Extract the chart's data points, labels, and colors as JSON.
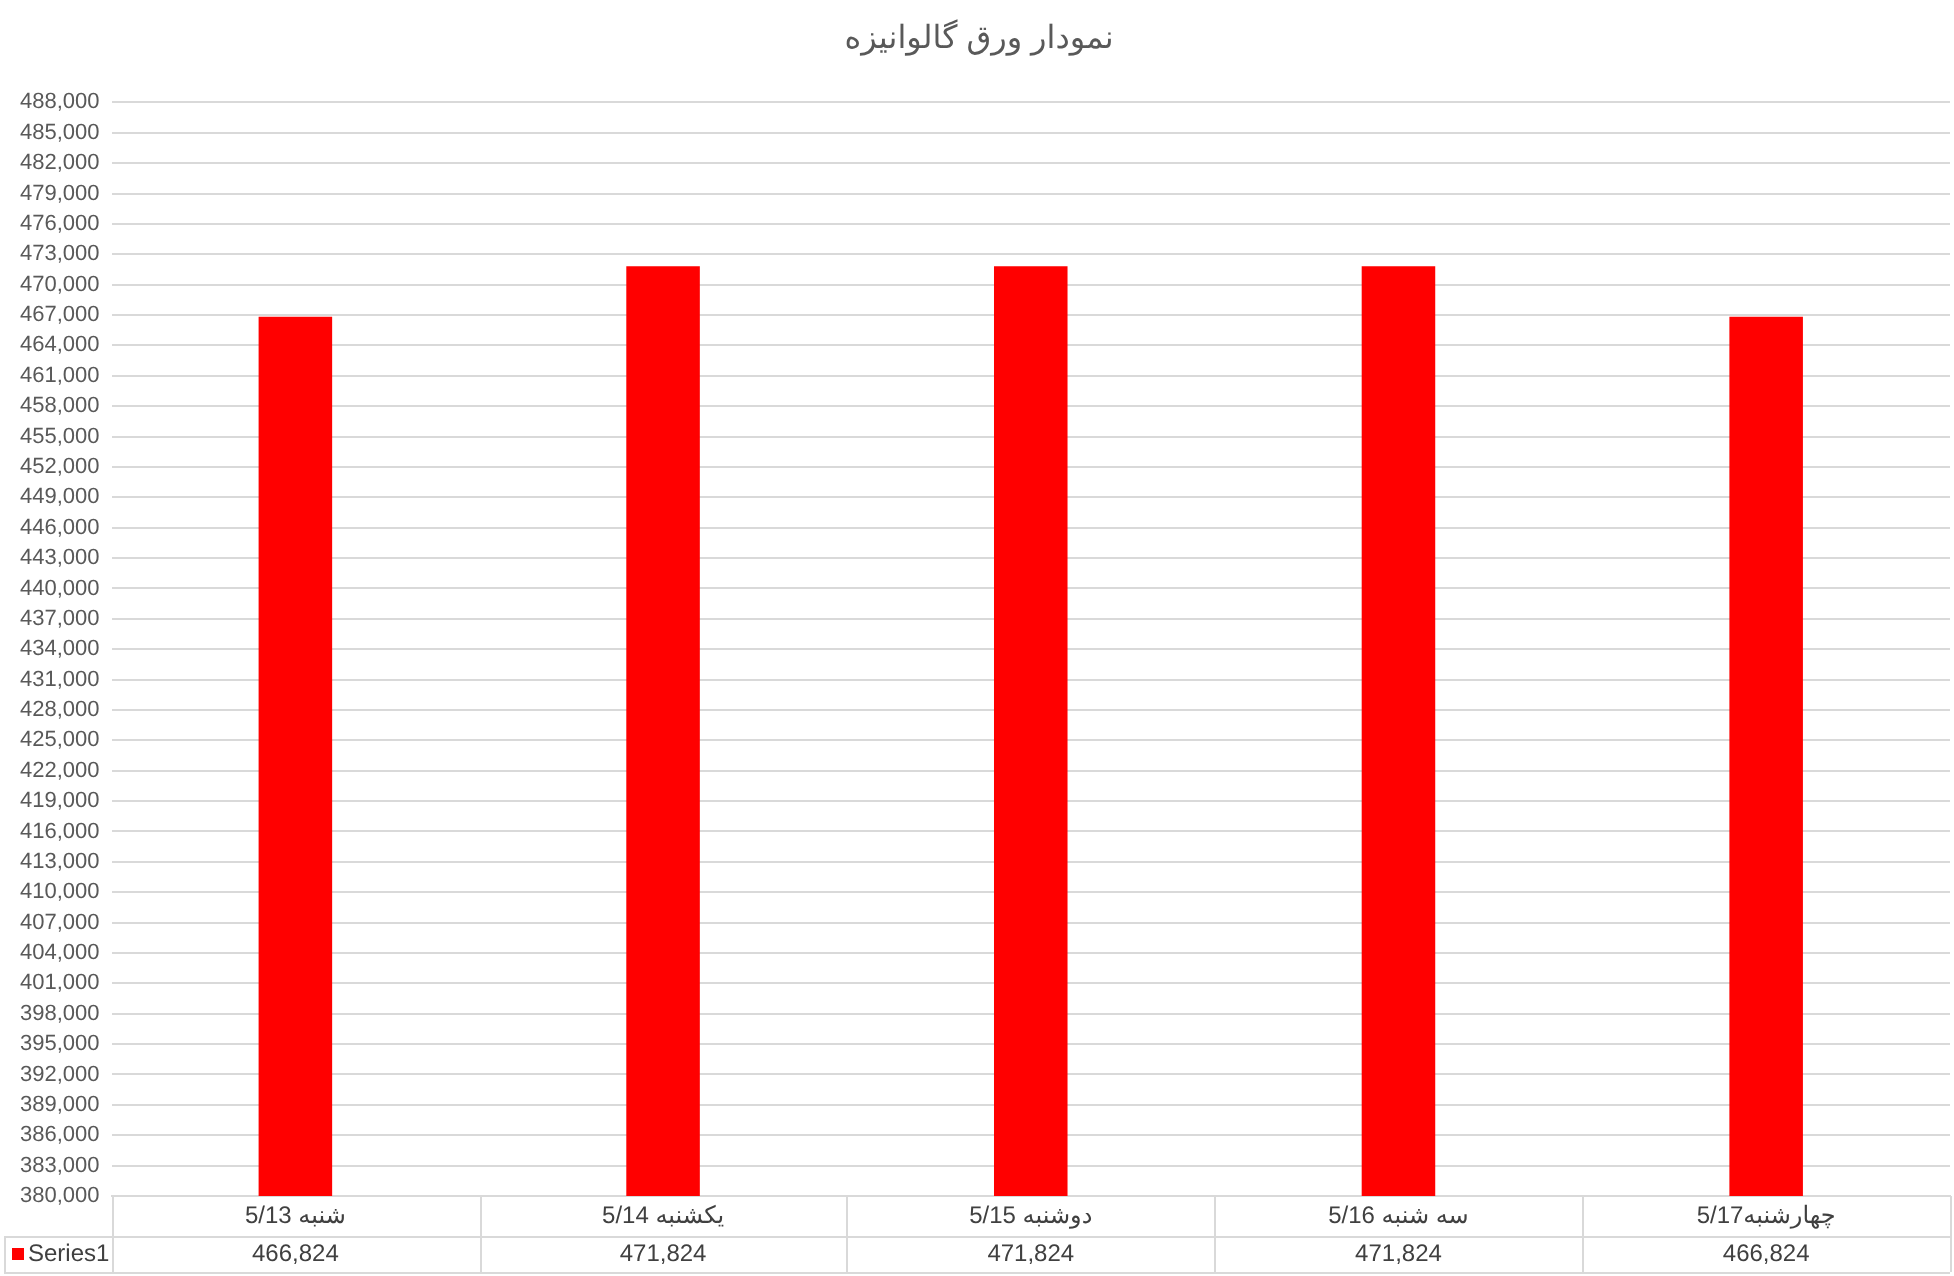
{
  "chart_data": {
    "type": "bar",
    "title": "نمودار ورق گالوانیزه",
    "categories": [
      "شنبه 5/13",
      "یکشنبه 5/14",
      "دوشنبه 5/15",
      "سه شنبه 5/16",
      "چهارشنبه5/17"
    ],
    "series": [
      {
        "name": "Series1",
        "color": "#ff0000",
        "values": [
          466824,
          471824,
          471824,
          471824,
          466824
        ],
        "value_labels": [
          "466,824",
          "471,824",
          "471,824",
          "471,824",
          "466,824"
        ]
      }
    ],
    "ylim": [
      380000,
      488000
    ],
    "yticks": [
      {
        "value": 380000,
        "label": "380,000"
      },
      {
        "value": 383000,
        "label": "383,000"
      },
      {
        "value": 386000,
        "label": "386,000"
      },
      {
        "value": 389000,
        "label": "389,000"
      },
      {
        "value": 392000,
        "label": "392,000"
      },
      {
        "value": 395000,
        "label": "395,000"
      },
      {
        "value": 398000,
        "label": "398,000"
      },
      {
        "value": 401000,
        "label": "401,000"
      },
      {
        "value": 404000,
        "label": "404,000"
      },
      {
        "value": 407000,
        "label": "407,000"
      },
      {
        "value": 410000,
        "label": "410,000"
      },
      {
        "value": 413000,
        "label": "413,000"
      },
      {
        "value": 416000,
        "label": "416,000"
      },
      {
        "value": 419000,
        "label": "419,000"
      },
      {
        "value": 422000,
        "label": "422,000"
      },
      {
        "value": 425000,
        "label": "425,000"
      },
      {
        "value": 428000,
        "label": "428,000"
      },
      {
        "value": 431000,
        "label": "431,000"
      },
      {
        "value": 434000,
        "label": "434,000"
      },
      {
        "value": 437000,
        "label": "437,000"
      },
      {
        "value": 440000,
        "label": "440,000"
      },
      {
        "value": 443000,
        "label": "443,000"
      },
      {
        "value": 446000,
        "label": "446,000"
      },
      {
        "value": 449000,
        "label": "449,000"
      },
      {
        "value": 452000,
        "label": "452,000"
      },
      {
        "value": 455000,
        "label": "455,000"
      },
      {
        "value": 458000,
        "label": "458,000"
      },
      {
        "value": 461000,
        "label": "461,000"
      },
      {
        "value": 464000,
        "label": "464,000"
      },
      {
        "value": 467000,
        "label": "467,000"
      },
      {
        "value": 470000,
        "label": "470,000"
      },
      {
        "value": 473000,
        "label": "473,000"
      },
      {
        "value": 476000,
        "label": "476,000"
      },
      {
        "value": 479000,
        "label": "479,000"
      },
      {
        "value": 482000,
        "label": "482,000"
      },
      {
        "value": 485000,
        "label": "485,000"
      },
      {
        "value": 488000,
        "label": "488,000"
      }
    ],
    "grid": "y"
  }
}
